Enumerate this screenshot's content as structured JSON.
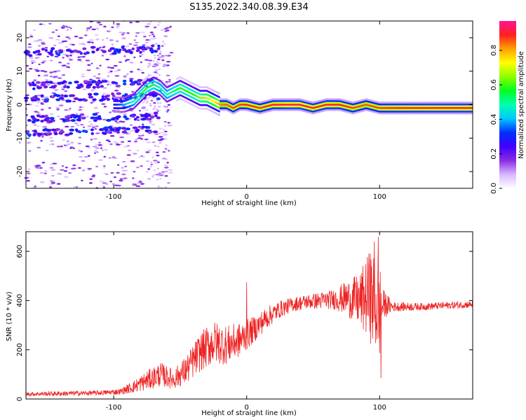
{
  "title": "S135.2022.340.08.39.E34",
  "chart_data": [
    {
      "type": "heatmap",
      "xlabel": "Height of straight line (km)",
      "ylabel": "Frequency (Hz)",
      "xlim": [
        -166,
        170
      ],
      "ylim": [
        -25,
        25
      ],
      "x_ticks": [
        -100,
        0,
        100
      ],
      "x_tick_labels": [
        "-100",
        "0",
        "100"
      ],
      "y_ticks": [
        20,
        10,
        0,
        -10,
        -20
      ],
      "y_tick_labels": [
        "20",
        "10",
        "0",
        "-10",
        "-20"
      ],
      "colorbar": {
        "label": "Normalized spectral amplitude",
        "range": [
          0,
          0.97
        ],
        "ticks": [
          0.0,
          0.2,
          0.4,
          0.6,
          0.8
        ],
        "tick_labels": [
          "0.0",
          "0.2",
          "0.4",
          "0.6",
          "0.8"
        ],
        "colormap": [
          "#ffffff",
          "#d7b8ff",
          "#8a2be2",
          "#3f00ff",
          "#0030ff",
          "#00c8ff",
          "#00ffb0",
          "#00ff20",
          "#8cff00",
          "#ffff00",
          "#ffa000",
          "#ff2020",
          "#ff1493"
        ]
      },
      "ridge": {
        "x": [
          -100,
          -92,
          -85,
          -80,
          -75,
          -70,
          -65,
          -60,
          -55,
          -50,
          -45,
          -40,
          -35,
          -30,
          -25,
          -20,
          -15,
          -10,
          -5,
          0,
          10,
          20,
          30,
          40,
          50,
          60,
          70,
          80,
          90,
          100,
          120,
          140,
          160,
          170
        ],
        "y": [
          0,
          0,
          1,
          3,
          5,
          6,
          5,
          3,
          4,
          5,
          4,
          3,
          2,
          2,
          1,
          0,
          0,
          -1,
          0,
          0,
          -1,
          0,
          0,
          0,
          -1,
          0,
          0,
          -1,
          0,
          -1,
          -1,
          -1,
          -1,
          -1
        ],
        "peak_amplitude": [
          0.3,
          0.4,
          0.5,
          0.55,
          0.6,
          0.55,
          0.5,
          0.5,
          0.55,
          0.6,
          0.6,
          0.6,
          0.65,
          0.7,
          0.75,
          0.85,
          0.88,
          0.9,
          0.9,
          0.92,
          0.9,
          0.92,
          0.95,
          0.95,
          0.92,
          0.93,
          0.92,
          0.9,
          0.88,
          0.9,
          0.92,
          0.93,
          0.93,
          0.93
        ]
      },
      "noise_bands_hz": [
        6,
        2,
        -4,
        -8,
        16
      ]
    },
    {
      "type": "line",
      "xlabel": "Height of straight line (km)",
      "ylabel": "SNR (10 * v/v)",
      "color": "#ee2222",
      "xlim": [
        -166,
        170
      ],
      "ylim": [
        0,
        680
      ],
      "x_ticks": [
        -100,
        0,
        100
      ],
      "x_tick_labels": [
        "-100",
        "0",
        "100"
      ],
      "y_ticks": [
        0,
        200,
        400,
        600
      ],
      "y_tick_labels": [
        "0",
        "200",
        "400",
        "600"
      ],
      "envelope": {
        "x": [
          -166,
          -140,
          -110,
          -95,
          -85,
          -75,
          -65,
          -55,
          -45,
          -35,
          -25,
          -15,
          -5,
          5,
          15,
          25,
          35,
          45,
          55,
          65,
          75,
          85,
          92,
          97,
          100,
          103,
          110,
          130,
          150,
          170
        ],
        "y": [
          20,
          22,
          25,
          30,
          50,
          75,
          100,
          80,
          120,
          190,
          230,
          220,
          240,
          280,
          330,
          365,
          385,
          395,
          400,
          405,
          410,
          400,
          420,
          380,
          360,
          385,
          375,
          375,
          380,
          385
        ]
      },
      "noise_amplitude": [
        8,
        10,
        10,
        12,
        25,
        40,
        50,
        40,
        60,
        80,
        90,
        80,
        70,
        55,
        45,
        35,
        30,
        30,
        35,
        40,
        70,
        110,
        180,
        200,
        200,
        60,
        20,
        15,
        15,
        15
      ],
      "spikes": [
        {
          "x": 0,
          "y": 475
        },
        {
          "x": 93,
          "y": 590
        },
        {
          "x": 96,
          "y": 640
        },
        {
          "x": 99,
          "y": 660
        },
        {
          "x": 101,
          "y": 85
        }
      ]
    }
  ]
}
